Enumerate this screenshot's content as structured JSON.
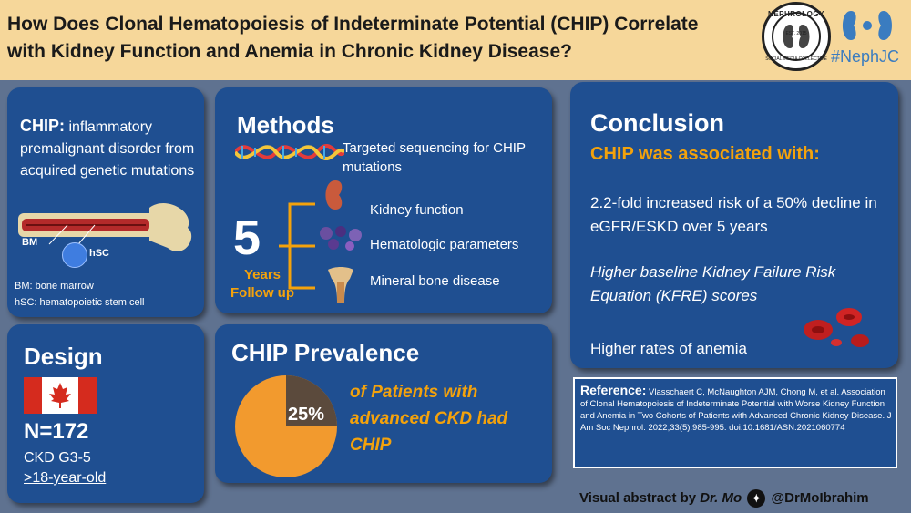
{
  "header": {
    "title": "How Does Clonal Hematopoiesis of Indeterminate Potential (CHIP) Correlate with Kidney Function and Anemia in Chronic Kidney Disease?",
    "seal_top": "NEPHROLOGY",
    "seal_bottom": "SOCIAL MEDIA COLLECTIVE",
    "seal_est": "EST. 2015",
    "hashtag": "#NephJC"
  },
  "chip_panel": {
    "term": "CHIP:",
    "definition": "inflammatory premalignant disorder from acquired genetic mutations",
    "bm_label": "BM",
    "hsc_label": "hSC",
    "note_bm": "BM: bone marrow",
    "note_hsc": "hSC: hematopoietic stem cell"
  },
  "methods": {
    "title": "Methods",
    "sequencing": "Targeted sequencing for CHIP mutations",
    "number": "5",
    "years": "Years",
    "follow": "Follow up",
    "items": [
      "Kidney function",
      "Hematologic parameters",
      "Mineral bone disease"
    ]
  },
  "conclusion": {
    "title": "Conclusion",
    "subtitle": "CHIP was associated with:",
    "point1": "2.2-fold increased risk of a 50% decline in eGFR/ESKD over 5 years",
    "point2": "Higher baseline Kidney Failure Risk Equation (KFRE) scores",
    "point3": "Higher rates of anemia"
  },
  "reference": {
    "label": "Reference:",
    "text": "Vlasschaert C, McNaughton AJM, Chong M, et al. Association of Clonal Hematopoiesis of Indeterminate Potential with Worse Kidney Function and Anemia in Two Cohorts of Patients with Advanced Chronic Kidney Disease. J Am Soc Nephrol. 2022;33(5):985-995.  doi:10.1681/ASN.2021060774"
  },
  "design": {
    "title": "Design",
    "n": "N=172",
    "stage": "CKD G3-5",
    "age": ">18-year-old"
  },
  "prevalence": {
    "title": "CHIP Prevalence",
    "percent_label": "25%",
    "percent": 25,
    "text": "of Patients with advanced CKD had CHIP",
    "colors": {
      "main": "#f29a2e",
      "slice": "#5b4a3c"
    }
  },
  "credit": {
    "prefix": "Visual abstract by",
    "author": "Dr. Mo",
    "handle": "@DrMoIbrahim"
  }
}
